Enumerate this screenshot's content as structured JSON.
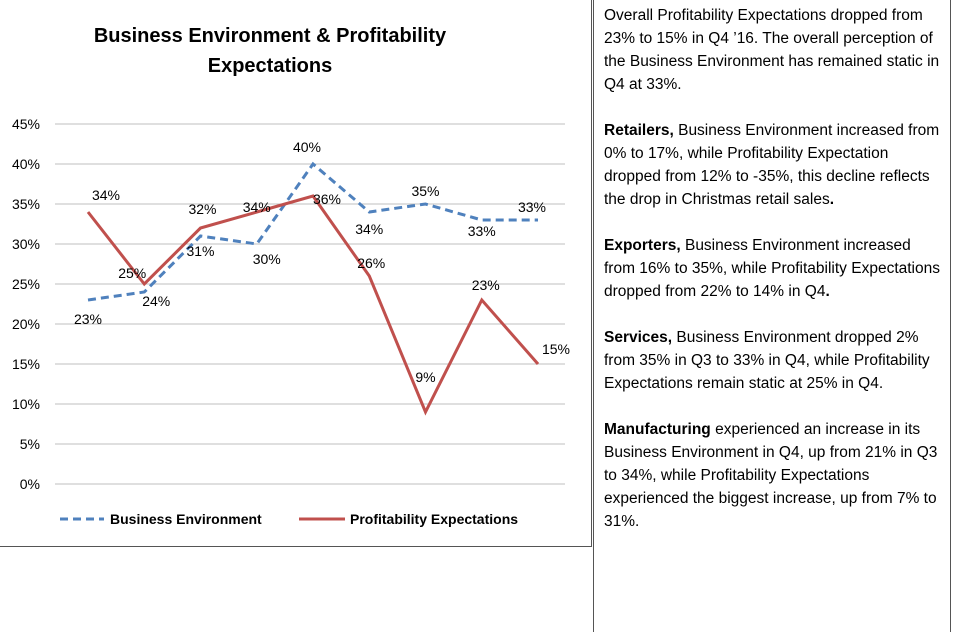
{
  "chart_data": {
    "type": "line",
    "title_lines": [
      "Business Environment & Profitability",
      "Expectations"
    ],
    "categories": [
      "",
      "",
      "",
      "",
      "",
      "",
      "",
      "",
      ""
    ],
    "ylim": [
      0,
      45
    ],
    "yticks": [
      "0%",
      "5%",
      "10%",
      "15%",
      "20%",
      "25%",
      "30%",
      "35%",
      "40%",
      "45%"
    ],
    "grid": true,
    "legend_position": "bottom",
    "series": [
      {
        "name": "Business Environment",
        "color": "#4F81BD",
        "style": "dashed",
        "values": [
          23,
          24,
          31,
          30,
          40,
          34,
          35,
          33,
          33
        ],
        "labels": [
          "23%",
          "24%",
          "31%",
          "30%",
          "40%",
          "34%",
          "35%",
          "33%",
          "33%"
        ]
      },
      {
        "name": "Profitability Expectations",
        "color": "#C0504D",
        "style": "solid",
        "values": [
          34,
          25,
          32,
          34,
          36,
          26,
          9,
          23,
          15
        ],
        "labels": [
          "34%",
          "25%",
          "32%",
          "34%",
          "36%",
          "26%",
          "9%",
          "23%",
          "15%"
        ]
      }
    ]
  },
  "commentary": {
    "overall": "Overall Profitability Expectations dropped from 23% to 15% in Q4 ’16. The overall perception of the Business Environment has remained static in Q4 at 33%.",
    "retailers_lead": "Retailers,",
    "retailers_text": " Business Environment increased from 0% to 17%, while Profitability Expectation dropped from 12% to -35%, this decline reflects the drop in Christmas retail sales",
    "retailers_end": ".",
    "exporters_lead": "Exporters,",
    "exporters_text": " Business Environment increased from 16% to 35%, while Profitability Expectations dropped from 22% to 14% in Q4",
    "exporters_end": ".",
    "services_lead": "Services,",
    "services_text": " Business Environment dropped 2% from 35% in Q3 to 33% in Q4, while Profitability Expectations remain static at 25% in Q4.",
    "manufacturing_lead": "Manufacturing",
    "manufacturing_text": " experienced an increase in its Business Environment in Q4, up from 21% in Q3 to 34%, while Profitability Expectations experienced the biggest increase, up from 7% to 31%."
  }
}
